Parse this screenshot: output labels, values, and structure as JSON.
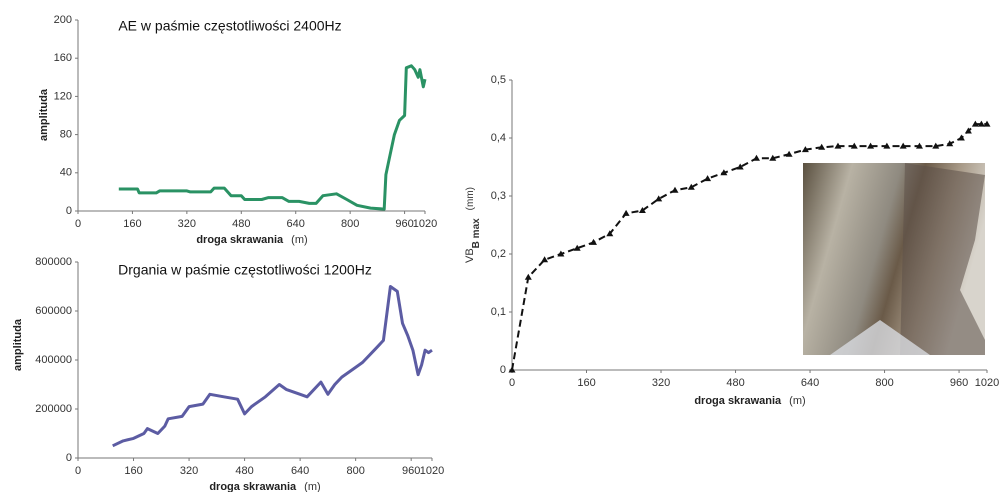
{
  "chart_data": [
    {
      "type": "line",
      "title": "AE w paśmie częstotliwości 2400Hz",
      "y_label": "amplituda",
      "x_label": "droga skrawania",
      "x_unit": "(m)",
      "xlim": [
        0,
        1020
      ],
      "xticks": [
        0,
        160,
        320,
        480,
        640,
        800,
        960,
        1020
      ],
      "ylim": [
        0,
        200
      ],
      "yticks": [
        0,
        40,
        80,
        120,
        160,
        200
      ],
      "series": [
        {
          "color": "#2a9264",
          "x": [
            120,
            175,
            180,
            230,
            240,
            320,
            330,
            390,
            400,
            430,
            450,
            480,
            490,
            540,
            560,
            600,
            620,
            650,
            680,
            700,
            720,
            760,
            790,
            820,
            860,
            900,
            905,
            915,
            930,
            945,
            960,
            965,
            980,
            990,
            1000,
            1005,
            1015,
            1020
          ],
          "values": [
            23,
            23,
            19,
            19,
            21,
            21,
            20,
            20,
            24,
            24,
            16,
            16,
            12,
            12,
            14,
            14,
            10,
            10,
            8,
            8,
            16,
            18,
            12,
            6,
            3,
            2,
            38,
            55,
            80,
            95,
            100,
            150,
            152,
            148,
            140,
            148,
            130,
            138
          ]
        }
      ]
    },
    {
      "type": "line",
      "title": "Drgania w paśmie częstotliwości 1200Hz",
      "y_label": "amplituda",
      "x_label": "droga skrawania",
      "x_unit": "(m)",
      "xlim": [
        0,
        1020
      ],
      "xticks": [
        0,
        160,
        320,
        480,
        640,
        800,
        960,
        1020
      ],
      "ylim": [
        0,
        800000
      ],
      "yticks": [
        0,
        200000,
        400000,
        600000,
        800000
      ],
      "series": [
        {
          "color": "#5c5ca3",
          "x": [
            100,
            130,
            160,
            190,
            200,
            230,
            250,
            260,
            300,
            320,
            360,
            380,
            420,
            460,
            480,
            500,
            540,
            580,
            600,
            640,
            660,
            700,
            720,
            740,
            760,
            800,
            820,
            860,
            880,
            900,
            920,
            935,
            950,
            965,
            980,
            990,
            1000,
            1010,
            1020
          ],
          "values": [
            50000,
            70000,
            80000,
            100000,
            120000,
            100000,
            130000,
            160000,
            170000,
            210000,
            220000,
            260000,
            250000,
            240000,
            180000,
            210000,
            250000,
            300000,
            280000,
            260000,
            250000,
            310000,
            260000,
            300000,
            330000,
            370000,
            390000,
            450000,
            480000,
            700000,
            680000,
            550000,
            500000,
            440000,
            340000,
            380000,
            440000,
            430000,
            440000
          ]
        }
      ]
    },
    {
      "type": "line",
      "y_label": "VB",
      "y_label_sub": "B max",
      "y_unit": "(mm)",
      "x_label": "droga skrawania",
      "x_unit": "(m)",
      "xlim": [
        0,
        1020
      ],
      "xticks": [
        0,
        160,
        320,
        480,
        640,
        800,
        960,
        1020
      ],
      "ylim": [
        0,
        0.5
      ],
      "yticks": [
        0,
        {
          "value": 0.1,
          "label": "0,1"
        },
        {
          "value": 0.2,
          "label": "0,2"
        },
        {
          "value": 0.3,
          "label": "0,3"
        },
        {
          "value": 0.4,
          "label": "0,4"
        },
        {
          "value": 0.5,
          "label": "0,5"
        }
      ],
      "series": [
        {
          "color": "#111111",
          "line_style": "dashed",
          "marker": "triangle",
          "x": [
            0,
            35,
            70,
            105,
            140,
            175,
            210,
            245,
            280,
            315,
            350,
            385,
            420,
            455,
            490,
            525,
            560,
            595,
            630,
            665,
            700,
            735,
            770,
            805,
            840,
            875,
            910,
            940,
            965,
            980,
            995,
            1008,
            1020
          ],
          "values": [
            0,
            0.16,
            0.19,
            0.2,
            0.21,
            0.22,
            0.235,
            0.27,
            0.275,
            0.295,
            0.31,
            0.315,
            0.33,
            0.34,
            0.35,
            0.365,
            0.365,
            0.372,
            0.38,
            0.384,
            0.386,
            0.386,
            0.386,
            0.386,
            0.386,
            0.386,
            0.386,
            0.39,
            0.4,
            0.412,
            0.424,
            0.424,
            0.424
          ]
        }
      ]
    }
  ]
}
